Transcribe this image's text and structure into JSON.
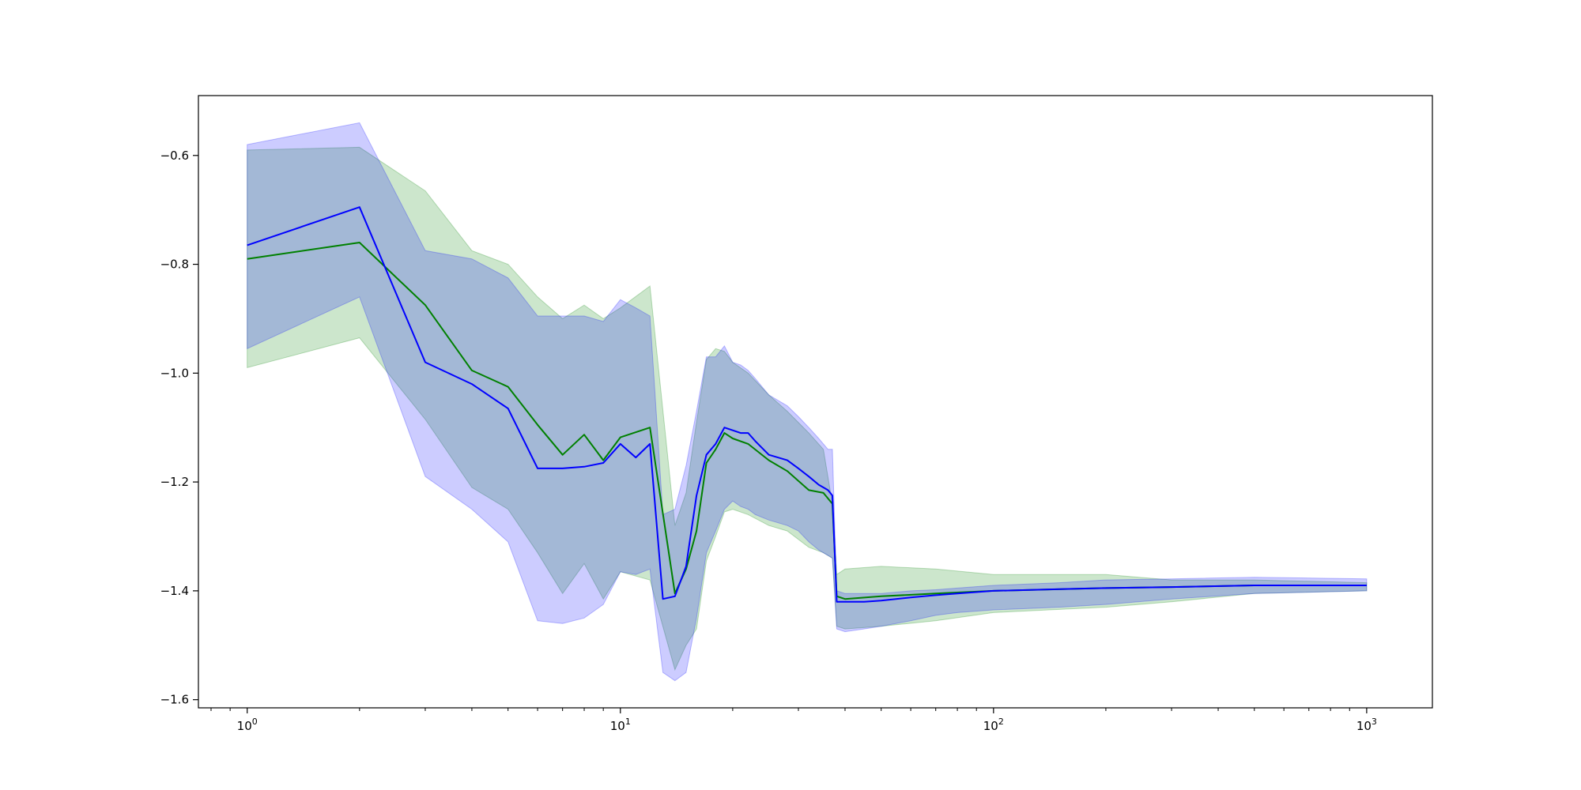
{
  "chart_data": {
    "type": "line",
    "title": "",
    "xlabel": "",
    "ylabel": "",
    "xscale": "log",
    "xlim": [
      0.74,
      1500
    ],
    "ylim": [
      -1.615,
      -0.49
    ],
    "grid": false,
    "x_ticks": [
      {
        "value": 1,
        "base": "10",
        "exp": "0"
      },
      {
        "value": 10,
        "base": "10",
        "exp": "1"
      },
      {
        "value": 100,
        "base": "10",
        "exp": "2"
      },
      {
        "value": 1000,
        "base": "10",
        "exp": "3"
      }
    ],
    "y_ticks": [
      {
        "value": -0.6,
        "label": "−0.6"
      },
      {
        "value": -0.8,
        "label": "−0.8"
      },
      {
        "value": -1.0,
        "label": "−1.0"
      },
      {
        "value": -1.2,
        "label": "−1.2"
      },
      {
        "value": -1.4,
        "label": "−1.4"
      },
      {
        "value": -1.6,
        "label": "−1.6"
      }
    ],
    "series": [
      {
        "color": "#008000",
        "band_color": "#008000",
        "band_opacity": 0.2,
        "x": [
          1,
          2,
          3,
          4,
          5,
          6,
          7,
          8,
          9,
          10,
          12,
          14,
          15,
          16,
          17,
          18,
          19,
          20,
          22,
          25,
          28,
          32,
          35,
          37,
          38,
          40,
          50,
          70,
          100,
          200,
          300,
          500,
          1000
        ],
        "y": [
          -0.79,
          -0.76,
          -0.875,
          -0.995,
          -1.025,
          -1.095,
          -1.15,
          -1.113,
          -1.16,
          -1.118,
          -1.1,
          -1.405,
          -1.36,
          -1.29,
          -1.165,
          -1.14,
          -1.11,
          -1.12,
          -1.13,
          -1.16,
          -1.18,
          -1.215,
          -1.22,
          -1.24,
          -1.41,
          -1.415,
          -1.41,
          -1.405,
          -1.4,
          -1.395,
          -1.393,
          -1.39,
          -1.39
        ],
        "upper": [
          -0.59,
          -0.585,
          -0.665,
          -0.775,
          -0.8,
          -0.86,
          -0.9,
          -0.875,
          -0.9,
          -0.88,
          -0.84,
          -1.28,
          -1.22,
          -1.09,
          -0.975,
          -0.955,
          -0.96,
          -0.98,
          -1.0,
          -1.04,
          -1.07,
          -1.11,
          -1.14,
          -1.24,
          -1.37,
          -1.36,
          -1.355,
          -1.36,
          -1.37,
          -1.37,
          -1.38,
          -1.38,
          -1.385
        ],
        "lower": [
          -0.99,
          -0.935,
          -1.085,
          -1.21,
          -1.25,
          -1.33,
          -1.405,
          -1.35,
          -1.415,
          -1.365,
          -1.38,
          -1.545,
          -1.5,
          -1.47,
          -1.345,
          -1.3,
          -1.255,
          -1.25,
          -1.26,
          -1.28,
          -1.29,
          -1.32,
          -1.33,
          -1.34,
          -1.465,
          -1.47,
          -1.465,
          -1.455,
          -1.44,
          -1.43,
          -1.42,
          -1.405,
          -1.4
        ]
      },
      {
        "color": "#0000ff",
        "band_color": "#0000ff",
        "band_opacity": 0.2,
        "x": [
          1,
          2,
          3,
          4,
          5,
          6,
          7,
          8,
          9,
          10,
          11,
          12,
          13,
          14,
          15,
          16,
          17,
          18,
          19,
          20,
          21,
          22,
          23,
          25,
          28,
          30,
          32,
          34,
          35,
          36,
          37,
          38,
          40,
          45,
          50,
          60,
          70,
          80,
          100,
          150,
          200,
          300,
          500,
          1000
        ],
        "y": [
          -0.765,
          -0.695,
          -0.98,
          -1.02,
          -1.065,
          -1.175,
          -1.175,
          -1.172,
          -1.165,
          -1.13,
          -1.155,
          -1.13,
          -1.415,
          -1.41,
          -1.355,
          -1.225,
          -1.15,
          -1.13,
          -1.1,
          -1.105,
          -1.11,
          -1.11,
          -1.125,
          -1.15,
          -1.16,
          -1.175,
          -1.19,
          -1.205,
          -1.21,
          -1.215,
          -1.225,
          -1.42,
          -1.42,
          -1.42,
          -1.418,
          -1.412,
          -1.408,
          -1.405,
          -1.4,
          -1.397,
          -1.395,
          -1.393,
          -1.39,
          -1.39
        ],
        "upper": [
          -0.58,
          -0.54,
          -0.775,
          -0.79,
          -0.825,
          -0.895,
          -0.895,
          -0.895,
          -0.905,
          -0.865,
          -0.88,
          -0.895,
          -1.26,
          -1.25,
          -1.17,
          -1.07,
          -0.97,
          -0.97,
          -0.95,
          -0.98,
          -0.985,
          -0.995,
          -1.01,
          -1.04,
          -1.06,
          -1.08,
          -1.1,
          -1.12,
          -1.13,
          -1.14,
          -1.14,
          -1.4,
          -1.405,
          -1.405,
          -1.405,
          -1.4,
          -1.398,
          -1.395,
          -1.39,
          -1.385,
          -1.38,
          -1.378,
          -1.375,
          -1.378
        ],
        "lower": [
          -0.955,
          -0.86,
          -1.19,
          -1.25,
          -1.31,
          -1.455,
          -1.46,
          -1.45,
          -1.425,
          -1.365,
          -1.37,
          -1.36,
          -1.55,
          -1.565,
          -1.55,
          -1.45,
          -1.33,
          -1.29,
          -1.25,
          -1.235,
          -1.245,
          -1.25,
          -1.26,
          -1.27,
          -1.28,
          -1.29,
          -1.31,
          -1.325,
          -1.33,
          -1.335,
          -1.34,
          -1.47,
          -1.475,
          -1.47,
          -1.465,
          -1.455,
          -1.445,
          -1.44,
          -1.435,
          -1.43,
          -1.425,
          -1.415,
          -1.405,
          -1.4
        ]
      }
    ]
  }
}
